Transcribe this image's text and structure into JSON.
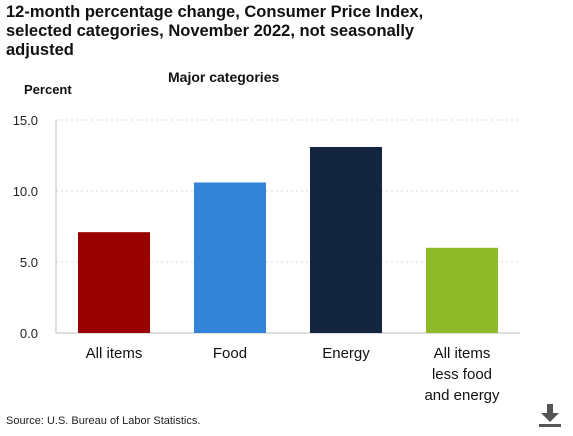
{
  "header": {
    "title": "12-month percentage change, Consumer Price Index, selected categories, November 2022, not seasonally adjusted",
    "subtitle": "Major categories",
    "unit_label": "Percent"
  },
  "footer": {
    "source": "Source: U.S. Bureau of Labor Statistics."
  },
  "icons": {
    "download": "download-icon"
  },
  "chart_data": {
    "type": "bar",
    "title": "12-month percentage change, Consumer Price Index, selected categories, November 2022, not seasonally adjusted",
    "subtitle": "Major categories",
    "ylabel": "Percent",
    "categories": [
      [
        "All items"
      ],
      [
        "Food"
      ],
      [
        "Energy"
      ],
      [
        "All items",
        "less food",
        "and energy"
      ]
    ],
    "values": [
      7.1,
      10.6,
      13.1,
      6.0
    ],
    "colors": [
      "#990000",
      "#3384D9",
      "#13253F",
      "#8EBA2A"
    ],
    "ylim": [
      0,
      15
    ],
    "yticks": [
      "0.0",
      "5.0",
      "10.0",
      "15.0"
    ],
    "ytick_values": [
      0,
      5,
      10,
      15
    ],
    "grid": true,
    "legend": "none"
  }
}
